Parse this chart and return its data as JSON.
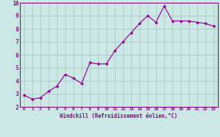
{
  "x": [
    0,
    1,
    2,
    3,
    4,
    5,
    6,
    7,
    8,
    9,
    10,
    11,
    12,
    13,
    14,
    15,
    16,
    17,
    18,
    19,
    20,
    21,
    22,
    23
  ],
  "y": [
    2.9,
    2.6,
    2.7,
    3.2,
    3.6,
    4.5,
    4.2,
    3.8,
    5.4,
    5.3,
    5.3,
    6.3,
    7.0,
    7.7,
    8.4,
    9.0,
    8.5,
    9.75,
    8.6,
    8.6,
    8.6,
    8.5,
    8.4,
    8.2
  ],
  "line_color": "#990099",
  "marker": "D",
  "marker_size": 2.0,
  "bg_color": "#cce8e4",
  "grid_color": "#aacccc",
  "tick_color": "#880088",
  "xlabel": "Windchill (Refroidissement éolien,°C)",
  "ylim": [
    2,
    10
  ],
  "xlim": [
    -0.5,
    23.5
  ],
  "yticks": [
    2,
    3,
    4,
    5,
    6,
    7,
    8,
    9,
    10
  ],
  "xticks": [
    0,
    1,
    2,
    3,
    4,
    5,
    6,
    7,
    8,
    9,
    10,
    11,
    12,
    13,
    14,
    15,
    16,
    17,
    18,
    19,
    20,
    21,
    22,
    23
  ],
  "spine_color": "#880088",
  "xlabel_color": "#880088"
}
